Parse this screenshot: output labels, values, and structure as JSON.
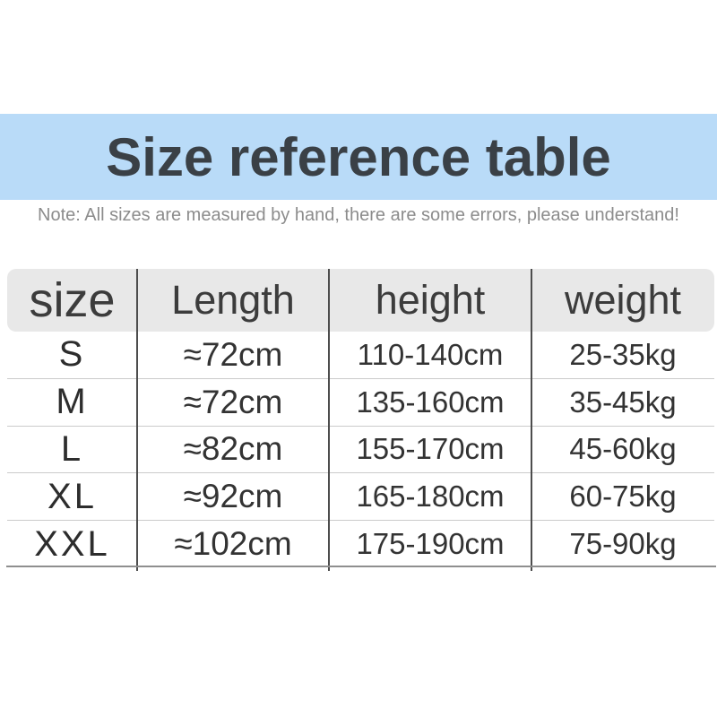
{
  "page": {
    "title": "Size reference table",
    "note": "Note: All sizes are measured by hand, there are some errors, please understand!"
  },
  "colors": {
    "banner_bg": "#b9dbf8",
    "title_text": "#3a4046",
    "note_text": "#8c8c8c",
    "header_bg": "#e8e8e8",
    "cell_text": "#333333",
    "column_divider": "#4d4d4d",
    "row_divider": "#cbcbcb",
    "bottom_border": "#8f8f8f"
  },
  "table": {
    "columns": [
      "size",
      "Length",
      "height",
      "weight"
    ],
    "rows": [
      {
        "size": "S",
        "length": "≈72cm",
        "height": "110-140cm",
        "weight": "25-35kg"
      },
      {
        "size": "M",
        "length": "≈72cm",
        "height": "135-160cm",
        "weight": "35-45kg"
      },
      {
        "size": "L",
        "length": "≈82cm",
        "height": "155-170cm",
        "weight": "45-60kg"
      },
      {
        "size": "XL",
        "length": "≈92cm",
        "height": "165-180cm",
        "weight": "60-75kg"
      },
      {
        "size": "XXL",
        "length": "≈102cm",
        "height": "175-190cm",
        "weight": "75-90kg"
      }
    ]
  },
  "chart_data": {
    "type": "table",
    "title": "Size reference table",
    "columns": [
      "size",
      "Length",
      "height",
      "weight"
    ],
    "rows": [
      [
        "S",
        "≈72cm",
        "110-140cm",
        "25-35kg"
      ],
      [
        "M",
        "≈72cm",
        "135-160cm",
        "35-45kg"
      ],
      [
        "L",
        "≈82cm",
        "155-170cm",
        "45-60kg"
      ],
      [
        "XL",
        "≈92cm",
        "165-180cm",
        "60-75kg"
      ],
      [
        "XXL",
        "≈102cm",
        "175-190cm",
        "75-90kg"
      ]
    ]
  }
}
